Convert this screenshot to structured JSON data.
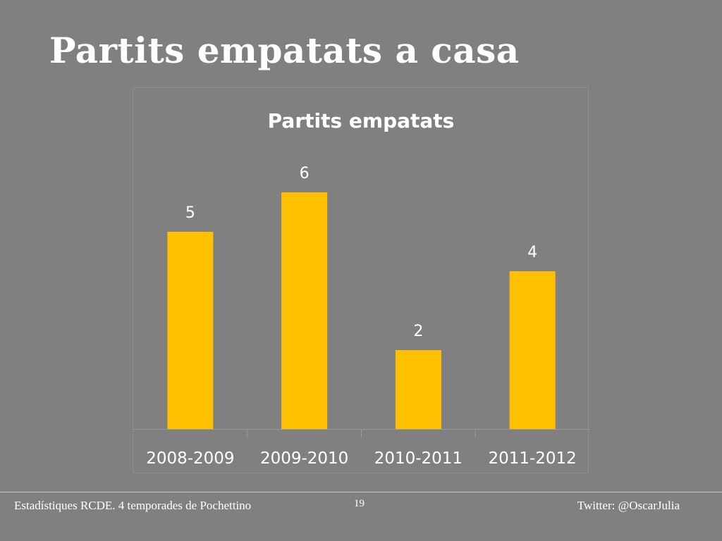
{
  "slide": {
    "title": "Partits empatats a casa"
  },
  "footer": {
    "left_text": "Estadístiques RCDE. 4 temporades de Pochettino",
    "page_number": "19",
    "right_text": "Twitter: @OscarJulia"
  },
  "colors": {
    "background": "#808080",
    "bar": "#ffc000",
    "text": "#ffffff"
  },
  "chart_data": {
    "type": "bar",
    "title": "Partits empatats",
    "categories": [
      "2008-2009",
      "2009-2010",
      "2010-2011",
      "2011-2012"
    ],
    "values": [
      5,
      6,
      2,
      4
    ],
    "data_labels": [
      "5",
      "6",
      "2",
      "4"
    ],
    "ylim": [
      0,
      6.5
    ],
    "grid": false,
    "legend": "none"
  }
}
